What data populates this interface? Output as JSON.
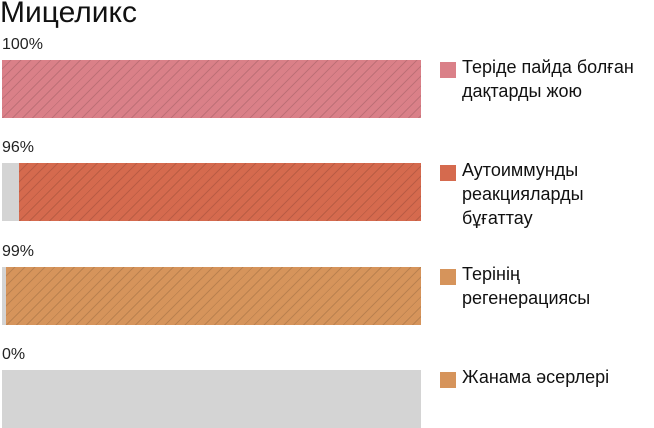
{
  "chart_data": {
    "type": "bar",
    "orientation": "horizontal",
    "title": "Мицеликс",
    "categories": [
      "Теріде пайда болған дақтарды жою",
      "Аутоиммунды реакцияларды бұғаттау",
      "Терінің регенерациясы",
      "Жанама әсерлері"
    ],
    "values": [
      100,
      96,
      99,
      0
    ],
    "value_labels": [
      "100%",
      "96%",
      "99%",
      "0%"
    ],
    "colors": [
      "#da8088",
      "#d56a4e",
      "#d6945b",
      "#d6945b"
    ],
    "track_color": "#d4d4d4",
    "xlim": [
      0,
      100
    ]
  }
}
